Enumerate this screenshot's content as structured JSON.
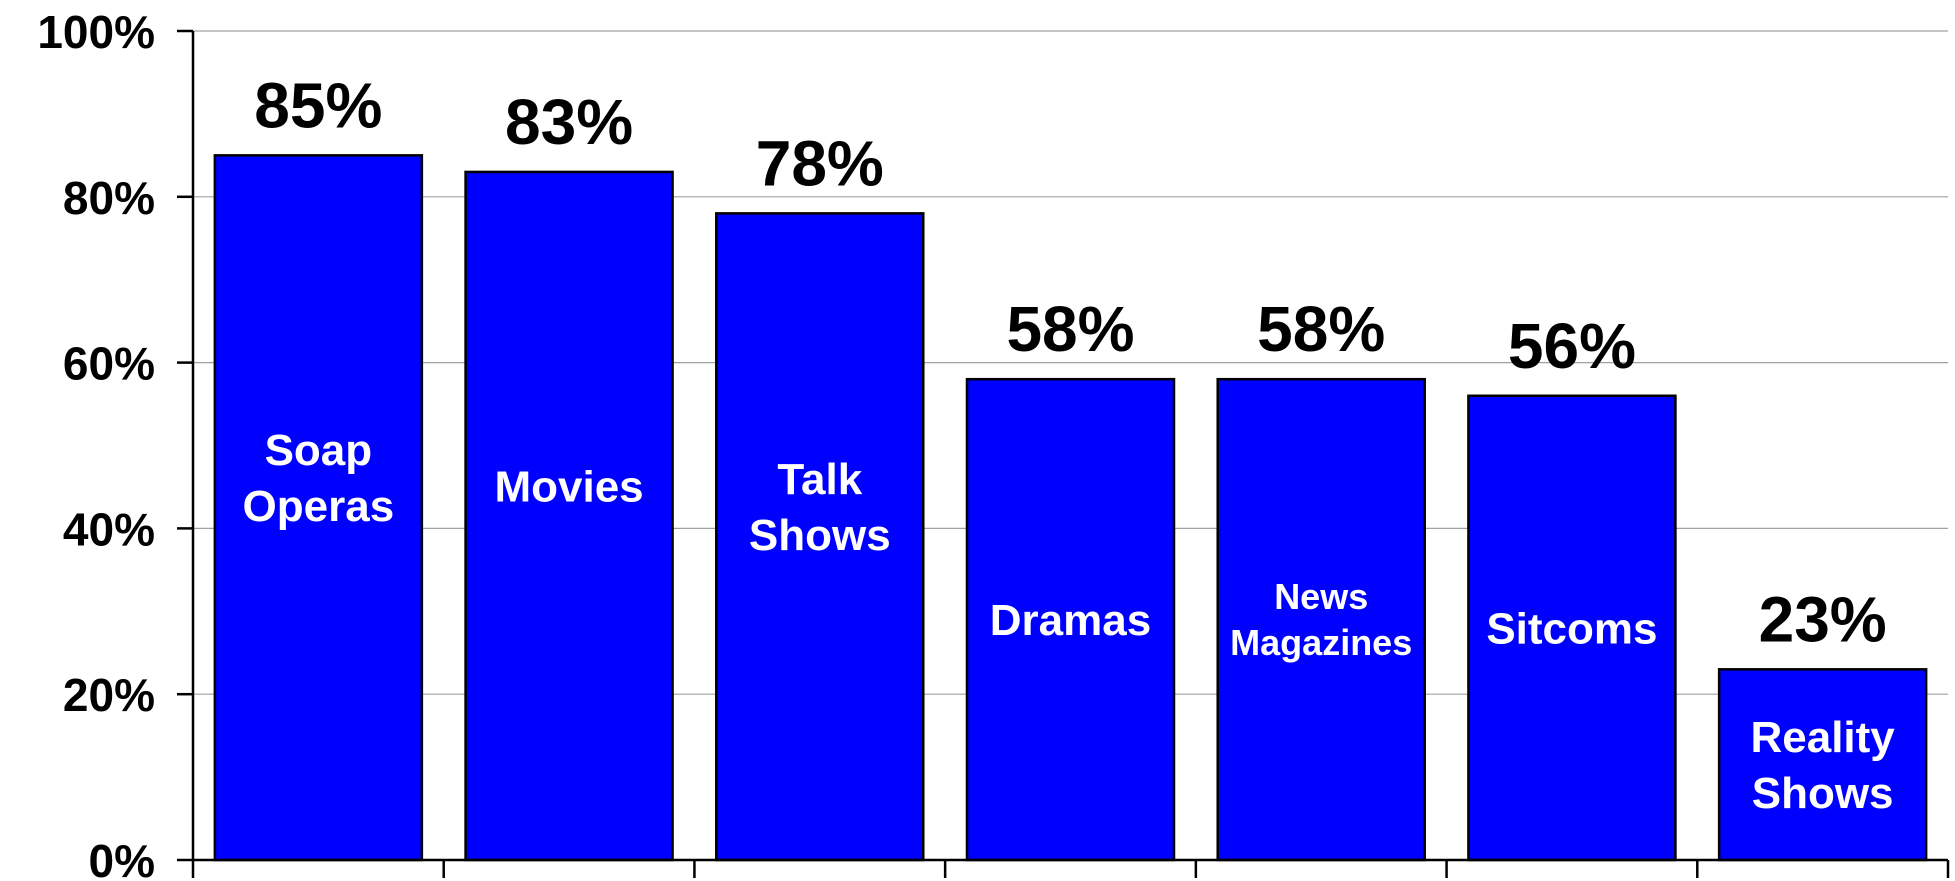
{
  "chart_data": {
    "type": "bar",
    "categories": [
      [
        "Soap",
        "Operas"
      ],
      [
        "Movies"
      ],
      [
        "Talk",
        "Shows"
      ],
      [
        "Dramas"
      ],
      [
        "News",
        "Magazines"
      ],
      [
        "Sitcoms"
      ],
      [
        "Reality",
        "Shows"
      ]
    ],
    "values": [
      85,
      83,
      78,
      58,
      58,
      56,
      23
    ],
    "value_labels": [
      "85%",
      "83%",
      "78%",
      "58%",
      "58%",
      "56%",
      "23%"
    ],
    "y_ticks": [
      0,
      20,
      40,
      60,
      80,
      100
    ],
    "y_tick_labels": [
      "0%",
      "20%",
      "40%",
      "60%",
      "80%",
      "100%"
    ],
    "ylim": [
      0,
      100
    ],
    "grid": true,
    "legend": "none",
    "colors": {
      "bar": "#0000ff",
      "bar_edge": "#000000",
      "grid": "#a0a0a0",
      "axis": "#000000"
    }
  }
}
